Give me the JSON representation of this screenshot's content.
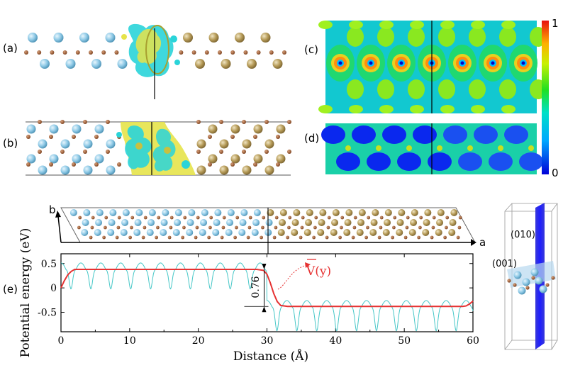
{
  "panel_labels": {
    "a": "(a)",
    "b": "(b)",
    "c": "(c)",
    "d": "(d)",
    "e": "(e)"
  },
  "colorbar": {
    "max_label": "1",
    "min_label": "0"
  },
  "lattice_vectors": {
    "a": "a",
    "b": "b"
  },
  "inset_planes": {
    "p010": "(010)",
    "p001": "(001)"
  },
  "colors": {
    "blue_atom": "#8ec9e6",
    "gold_atom": "#b59a57",
    "small_atom": "#9a5a2e",
    "isosurface_cyan": "#2ad4d9",
    "isosurface_yellow": "#e6e34a",
    "avg_potential": "#e63232",
    "raw_potential": "#45c7c7"
  },
  "chart_data": {
    "type": "line",
    "xlabel": "Distance (Å)",
    "ylabel": "Potential energy (eV)",
    "xlim": [
      0,
      60
    ],
    "ylim": [
      -0.9,
      0.7
    ],
    "xticks": [
      0,
      10,
      20,
      30,
      40,
      50,
      60
    ],
    "yticks": [
      -0.5,
      0,
      0.5
    ],
    "ytick_labels": [
      "-0.5",
      "0",
      "0.5"
    ],
    "annotation_label": "V(y)",
    "step_label": "0.76",
    "series": [
      {
        "name": "averaged potential V(y)",
        "x": [
          0,
          0.5,
          1,
          1.5,
          2,
          3,
          28.5,
          29.5,
          30,
          30.5,
          31,
          31.5,
          32,
          33,
          58.5,
          59,
          59.5,
          60
        ],
        "y": [
          0.0,
          0.15,
          0.27,
          0.34,
          0.38,
          0.38,
          0.38,
          0.36,
          0.28,
          0.1,
          -0.12,
          -0.28,
          -0.36,
          -0.38,
          -0.38,
          -0.37,
          -0.33,
          -0.27
        ]
      },
      {
        "name": "planar potential",
        "period": 2.9,
        "left": {
          "x0": 0,
          "x1": 30,
          "base": 0.38,
          "amplitude_up": 0.22,
          "amplitude_down": 0.4
        },
        "right": {
          "x0": 30,
          "x1": 60,
          "base": -0.38,
          "amplitude_up": 0.2,
          "amplitude_down": 0.5
        }
      }
    ]
  }
}
